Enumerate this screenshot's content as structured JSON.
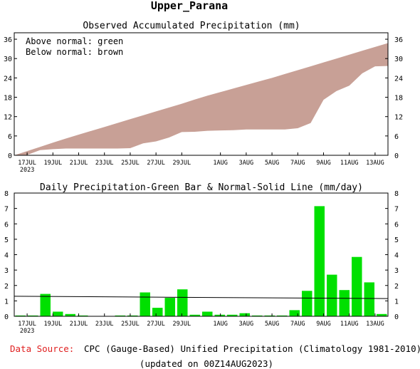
{
  "title": "Upper_Parana",
  "colors": {
    "accumulated_fill": "#c8a096",
    "bar_fill": "#00e000",
    "normal_line": "#000000",
    "source_label": "#e02020"
  },
  "top_panel": {
    "title": "Observed Accumulated Precipitation (mm)",
    "legend_lines": [
      "Above normal: green",
      "Below normal: brown"
    ],
    "yticks": [
      "0",
      "6",
      "12",
      "18",
      "24",
      "30",
      "36"
    ]
  },
  "bottom_panel": {
    "title": "Daily Precipitation-Green Bar & Normal-Solid Line (mm/day)",
    "yticks": [
      "0",
      "1",
      "2",
      "3",
      "4",
      "5",
      "6",
      "7",
      "8"
    ]
  },
  "x_ticks": [
    {
      "label": "17JUL",
      "day": 0
    },
    {
      "label": "19JUL",
      "day": 2
    },
    {
      "label": "21JUL",
      "day": 4
    },
    {
      "label": "23JUL",
      "day": 6
    },
    {
      "label": "25JUL",
      "day": 8
    },
    {
      "label": "27JUL",
      "day": 10
    },
    {
      "label": "29JUL",
      "day": 12
    },
    {
      "label": "1AUG",
      "day": 15
    },
    {
      "label": "3AUG",
      "day": 17
    },
    {
      "label": "5AUG",
      "day": 19
    },
    {
      "label": "7AUG",
      "day": 21
    },
    {
      "label": "9AUG",
      "day": 23
    },
    {
      "label": "11AUG",
      "day": 25
    },
    {
      "label": "13AUG",
      "day": 27
    }
  ],
  "x_year_label": "2023",
  "footer": {
    "source_label": "Data Source:",
    "source_text": "CPC (Gauge-Based) Unified Precipitation (Climatology 1981-2010)",
    "updated": "(updated on 00Z14AUG2023)"
  },
  "chart_data": [
    {
      "type": "area",
      "title": "Observed Accumulated Precipitation (mm)",
      "x": [
        "16JUL",
        "17JUL",
        "18JUL",
        "19JUL",
        "20JUL",
        "21JUL",
        "22JUL",
        "23JUL",
        "24JUL",
        "25JUL",
        "26JUL",
        "27JUL",
        "28JUL",
        "29JUL",
        "30JUL",
        "31JUL",
        "1AUG",
        "2AUG",
        "3AUG",
        "4AUG",
        "5AUG",
        "6AUG",
        "7AUG",
        "8AUG",
        "9AUG",
        "10AUG",
        "11AUG",
        "12AUG",
        "13AUG",
        "14AUG"
      ],
      "series": [
        {
          "name": "Normal",
          "values": [
            0,
            1.3,
            2.6,
            3.9,
            5.2,
            6.4,
            7.6,
            8.8,
            10.0,
            11.2,
            12.4,
            13.6,
            14.8,
            16.0,
            17.3,
            18.5,
            19.6,
            20.7,
            21.8,
            22.9,
            24.0,
            25.2,
            26.4,
            27.6,
            28.8,
            30.0,
            31.2,
            32.4,
            33.6,
            34.8
          ]
        },
        {
          "name": "Observed",
          "values": [
            0,
            0.1,
            1.6,
            1.9,
            2.1,
            2.1,
            2.1,
            2.1,
            2.1,
            2.2,
            3.7,
            4.3,
            5.5,
            7.2,
            7.3,
            7.6,
            7.7,
            7.8,
            8.0,
            8.0,
            8.0,
            8.0,
            8.4,
            10.0,
            17.2,
            19.9,
            21.6,
            25.4,
            27.6,
            27.7
          ]
        }
      ],
      "ylim": [
        0,
        38
      ],
      "ylabel": ""
    },
    {
      "type": "bar",
      "title": "Daily Precipitation-Green Bar & Normal-Solid Line (mm/day)",
      "categories": [
        "16JUL",
        "17JUL",
        "18JUL",
        "19JUL",
        "20JUL",
        "21JUL",
        "22JUL",
        "23JUL",
        "24JUL",
        "25JUL",
        "26JUL",
        "27JUL",
        "28JUL",
        "29JUL",
        "30JUL",
        "31JUL",
        "1AUG",
        "2AUG",
        "3AUG",
        "4AUG",
        "5AUG",
        "6AUG",
        "7AUG",
        "8AUG",
        "9AUG",
        "10AUG",
        "11AUG",
        "12AUG",
        "13AUG",
        "14AUG"
      ],
      "values": [
        0.05,
        0.05,
        1.45,
        0.3,
        0.15,
        0.05,
        0.0,
        0.0,
        0.05,
        0.05,
        1.55,
        0.55,
        1.2,
        1.75,
        0.1,
        0.3,
        0.1,
        0.1,
        0.2,
        0.05,
        0.05,
        0.05,
        0.4,
        1.65,
        7.15,
        2.7,
        1.7,
        3.85,
        2.2,
        0.15
      ],
      "normal_line": {
        "start": 1.3,
        "end": 1.15
      },
      "ylim": [
        0,
        8
      ],
      "ylabel": ""
    }
  ]
}
